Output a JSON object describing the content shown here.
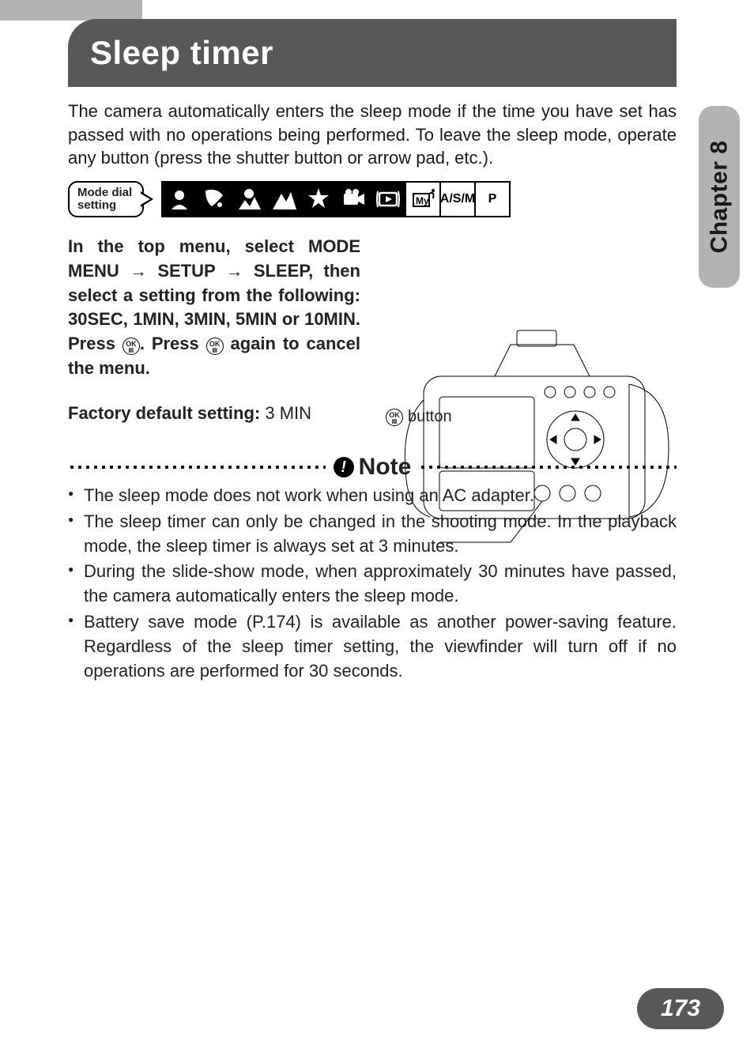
{
  "colors": {
    "banner_bg": "#585858",
    "banner_text": "#ffffff",
    "tab_bg": "#b3b3b3",
    "tab_text": "#1a1a1a",
    "body_text": "#1a1a1a",
    "pagenum_bg": "#585858",
    "pagenum_text": "#ffffff",
    "icon_dark_bg": "#000000",
    "icon_dark_fg": "#ffffff",
    "border": "#000000",
    "topstrip": "#b3b3b3"
  },
  "chapter_tab": "Chapter 8",
  "title": "Sleep timer",
  "intro": "The camera automatically enters the sleep mode if the time you have set has passed with no operations being performed. To leave the sleep mode, operate any button (press the shutter button or arrow pad, etc.).",
  "mode_dial": {
    "label_line1": "Mode dial",
    "label_line2": "setting",
    "icons": [
      {
        "name": "portrait-icon",
        "glyph": "svg-portrait",
        "dark": true
      },
      {
        "name": "sports-icon",
        "glyph": "svg-sports",
        "dark": true
      },
      {
        "name": "landscape-icon",
        "glyph": "svg-landscape",
        "dark": true
      },
      {
        "name": "mountain-icon",
        "glyph": "svg-mountain",
        "dark": true
      },
      {
        "name": "night-icon",
        "glyph": "svg-night",
        "dark": true
      },
      {
        "name": "movie-icon",
        "glyph": "svg-movie",
        "dark": true
      },
      {
        "name": "playback-icon",
        "glyph": "svg-playback",
        "dark": true
      },
      {
        "name": "mymode-icon",
        "glyph": "svg-my",
        "dark": false
      },
      {
        "name": "asm-mode",
        "text": "A/S/M",
        "dark": false
      },
      {
        "name": "p-mode",
        "text": "P",
        "dark": false
      }
    ]
  },
  "instructions_html": "In the top menu, select MODE MENU → SETUP → SLEEP, then select a setting from the following: 30SEC, 1MIN, 3MIN, 5MIN or 10MIN. Press ⊛. Press ⊛ again to cancel the menu.",
  "instructions": {
    "line": "In the top menu, select MODE MENU",
    "arrow": "→",
    "line2": "SETUP",
    "line3": "SLEEP, then select a setting from the following: 30SEC, 1MIN, 3MIN, 5MIN or 10MIN. Press",
    "line4": ". Press",
    "line5": " again to cancel the menu.",
    "options": [
      "30SEC",
      "1MIN",
      "3MIN",
      "5MIN",
      "10MIN"
    ]
  },
  "ok_button": {
    "top": "OK",
    "bottom": "▤"
  },
  "factory_default_label": "Factory default setting:",
  "factory_default_value": " 3 MIN",
  "camera_callout": "button",
  "note_heading": "Note",
  "notes": [
    "The sleep mode does not work when using an AC adapter.",
    "The sleep timer can only be changed in the shooting mode. In the playback mode, the sleep timer is always set at 3 minutes.",
    "During the slide-show mode, when approximately 30 minutes have passed, the camera automatically enters the sleep mode.",
    "Battery save mode (P.174) is available as another power-saving feature. Regardless of the sleep timer setting, the viewfinder will turn off if no operations are performed for 30 seconds."
  ],
  "page_number": "173",
  "typography": {
    "title_fontsize_pt": 32,
    "body_fontsize_pt": 16,
    "note_heading_fontsize_pt": 22,
    "chapter_fontsize_pt": 22,
    "pagenum_fontsize_pt": 22
  }
}
